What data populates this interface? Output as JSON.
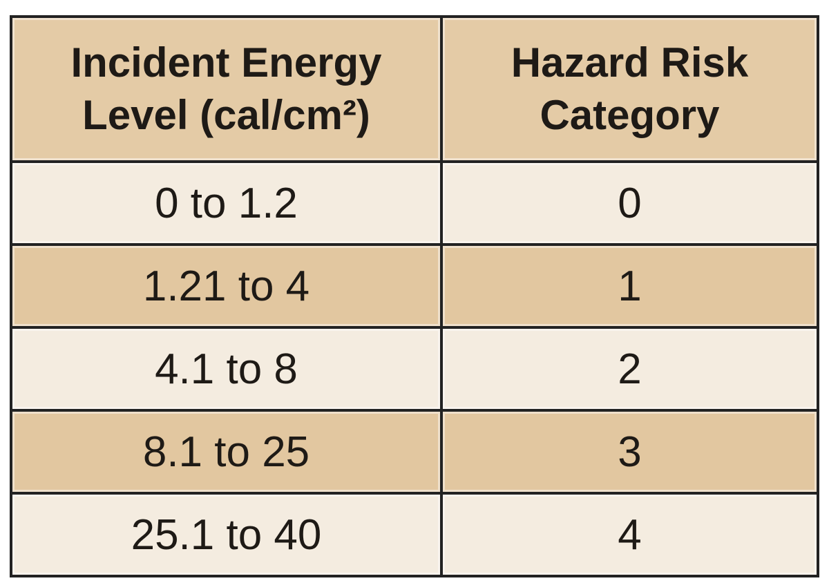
{
  "table": {
    "header": [
      [
        "Incident Energy",
        "Level (cal/cm²)"
      ],
      [
        "Hazard Risk",
        "Category"
      ]
    ],
    "rows": [
      [
        "0 to 1.2",
        0
      ],
      [
        "1.21 to 4",
        1
      ],
      [
        "4.1 to 8",
        2
      ],
      [
        "8.1 to 25",
        3
      ],
      [
        "25.1 to 40",
        4
      ]
    ]
  }
}
